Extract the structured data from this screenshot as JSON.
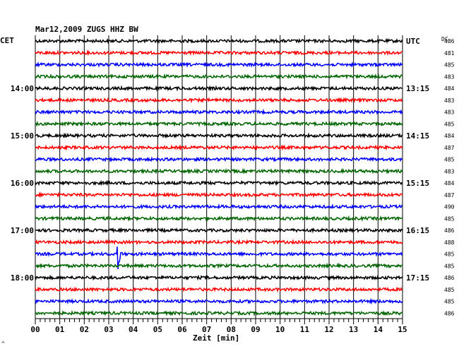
{
  "chart_data": {
    "type": "line",
    "title": "Mar12,2009   ZUGS HHZ BW",
    "left_timezone": "CET",
    "right_timezone": "UTC",
    "dc_header": "DC",
    "xlabel": "Zeit [min]",
    "xlim": [
      0,
      15
    ],
    "x_ticks": [
      "00",
      "01",
      "02",
      "03",
      "04",
      "05",
      "06",
      "07",
      "08",
      "09",
      "10",
      "11",
      "12",
      "13",
      "14",
      "15"
    ],
    "trace_colors": [
      "#000000",
      "#ff0000",
      "#0000ff",
      "#006400"
    ],
    "left_hour_labels": [
      {
        "trace": 4,
        "label": "14:00"
      },
      {
        "trace": 8,
        "label": "15:00"
      },
      {
        "trace": 12,
        "label": "16:00"
      },
      {
        "trace": 16,
        "label": "17:00"
      },
      {
        "trace": 20,
        "label": "18:00"
      }
    ],
    "right_hour_labels": [
      {
        "trace": 0,
        "label": "UTC"
      },
      {
        "trace": 4,
        "label": "13:15"
      },
      {
        "trace": 8,
        "label": "14:15"
      },
      {
        "trace": 12,
        "label": "15:15"
      },
      {
        "trace": 16,
        "label": "16:15"
      },
      {
        "trace": 20,
        "label": "17:15"
      }
    ],
    "dc_values": [
      "486",
      "481",
      "485",
      "483",
      "484",
      "483",
      "483",
      "485",
      "484",
      "487",
      "485",
      "483",
      "484",
      "487",
      "490",
      "485",
      "486",
      "488",
      "485",
      "485",
      "486",
      "485",
      "485",
      "486"
    ],
    "events": [
      {
        "trace": 18,
        "minute": 3.35,
        "amplitude": 30,
        "note": "earthquake signal"
      },
      {
        "trace": 17,
        "minute": 4.2,
        "amplitude": 4,
        "note": "small spike"
      }
    ],
    "footer_mark": "^"
  }
}
